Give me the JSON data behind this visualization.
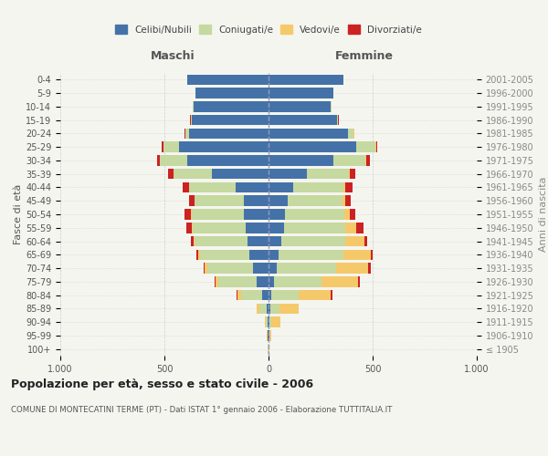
{
  "age_groups": [
    "100+",
    "95-99",
    "90-94",
    "85-89",
    "80-84",
    "75-79",
    "70-74",
    "65-69",
    "60-64",
    "55-59",
    "50-54",
    "45-49",
    "40-44",
    "35-39",
    "30-34",
    "25-29",
    "20-24",
    "15-19",
    "10-14",
    "5-9",
    "0-4"
  ],
  "birth_years": [
    "≤ 1905",
    "1906-1910",
    "1911-1915",
    "1916-1920",
    "1921-1925",
    "1926-1930",
    "1931-1935",
    "1936-1940",
    "1941-1945",
    "1946-1950",
    "1951-1955",
    "1956-1960",
    "1961-1965",
    "1966-1970",
    "1971-1975",
    "1976-1980",
    "1981-1985",
    "1986-1990",
    "1991-1995",
    "1996-2000",
    "2001-2005"
  ],
  "maschi": {
    "celibi": [
      2,
      3,
      5,
      10,
      30,
      55,
      75,
      90,
      100,
      110,
      120,
      120,
      160,
      270,
      390,
      430,
      380,
      370,
      360,
      350,
      390
    ],
    "coniugati": [
      1,
      3,
      8,
      35,
      100,
      185,
      220,
      240,
      255,
      255,
      250,
      235,
      220,
      185,
      130,
      75,
      20,
      5,
      3,
      2,
      1
    ],
    "vedovi": [
      0,
      1,
      3,
      10,
      20,
      15,
      10,
      8,
      5,
      3,
      2,
      2,
      2,
      1,
      1,
      1,
      0,
      0,
      0,
      0,
      0
    ],
    "divorziati": [
      0,
      0,
      0,
      0,
      3,
      5,
      8,
      10,
      15,
      25,
      30,
      25,
      30,
      25,
      15,
      5,
      2,
      1,
      0,
      0,
      0
    ]
  },
  "femmine": {
    "nubili": [
      2,
      3,
      5,
      8,
      15,
      25,
      40,
      50,
      60,
      75,
      80,
      90,
      120,
      185,
      310,
      420,
      380,
      330,
      300,
      310,
      360
    ],
    "coniugate": [
      0,
      2,
      10,
      45,
      130,
      230,
      285,
      310,
      310,
      295,
      285,
      265,
      240,
      200,
      155,
      95,
      30,
      5,
      2,
      1,
      1
    ],
    "vedove": [
      2,
      10,
      40,
      90,
      155,
      175,
      155,
      130,
      90,
      50,
      25,
      15,
      10,
      5,
      3,
      2,
      1,
      0,
      0,
      0,
      0
    ],
    "divorziate": [
      0,
      0,
      1,
      2,
      5,
      10,
      10,
      10,
      15,
      35,
      25,
      25,
      35,
      25,
      20,
      5,
      2,
      1,
      0,
      0,
      0
    ]
  },
  "colors": {
    "celibi": "#4472a8",
    "coniugati": "#c5d9a0",
    "vedovi": "#f5c96a",
    "divorziati": "#cc2222"
  },
  "legend_labels": [
    "Celibi/Nubili",
    "Coniugati/e",
    "Vedovi/e",
    "Divorziati/e"
  ],
  "title": "Popolazione per età, sesso e stato civile - 2006",
  "subtitle": "COMUNE DI MONTECATINI TERME (PT) - Dati ISTAT 1° gennaio 2006 - Elaborazione TUTTITALIA.IT",
  "ylabel_left": "Fasce di età",
  "ylabel_right": "Anni di nascita",
  "xlabel_left": "Maschi",
  "xlabel_right": "Femmine",
  "xlim": 1000,
  "xtick_vals": [
    -1000,
    -500,
    0,
    500,
    1000
  ],
  "xtick_labels": [
    "1.000",
    "500",
    "0",
    "500",
    "1.000"
  ],
  "bg_color": "#f5f5f0",
  "grid_color": "#cccccc"
}
